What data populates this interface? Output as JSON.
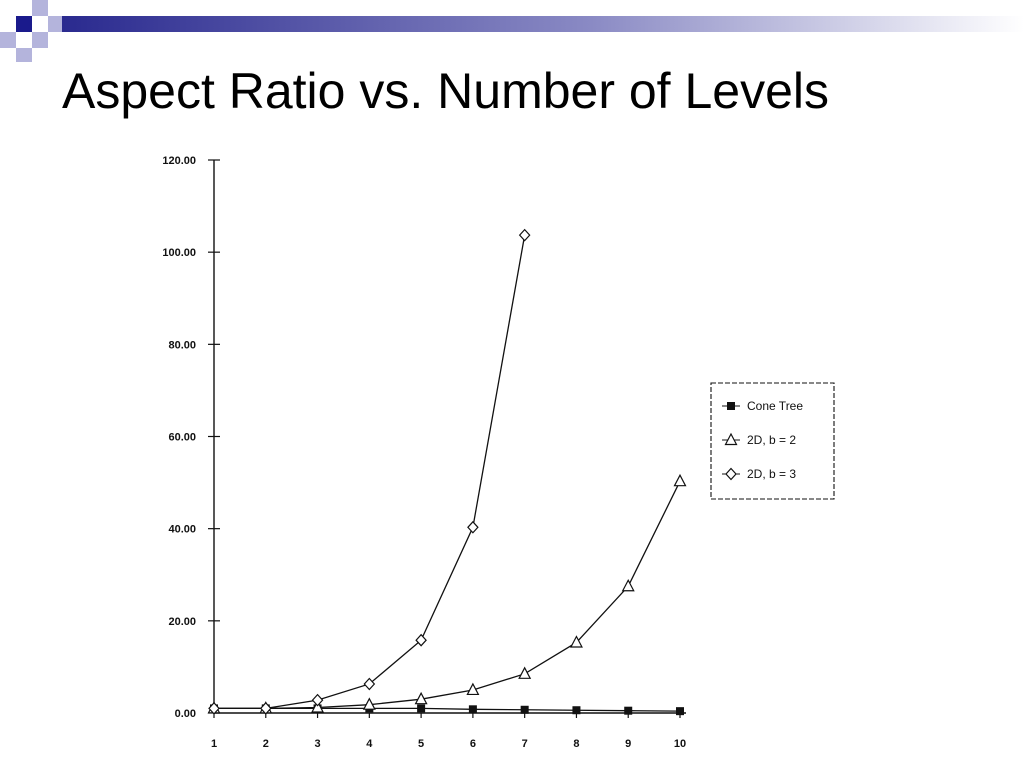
{
  "slide": {
    "title": "Aspect Ratio vs. Number of Levels"
  },
  "colors": {
    "accent_dark": "#1a1a8c",
    "accent_light": "#b4b4dc",
    "ink": "#111111"
  },
  "chart_data": {
    "type": "line",
    "title": "",
    "xlabel": "",
    "ylabel": "",
    "x": [
      1,
      2,
      3,
      4,
      5,
      6,
      7,
      8,
      9,
      10
    ],
    "x_tick_labels": [
      "1",
      "2",
      "3",
      "4",
      "5",
      "6",
      "7",
      "8",
      "9",
      "10"
    ],
    "y_tick_labels": [
      "0.00",
      "20.00",
      "40.00",
      "60.00",
      "80.00",
      "100.00",
      "120.00"
    ],
    "y_ticks": [
      0,
      20,
      40,
      60,
      80,
      100,
      120
    ],
    "xlim": [
      1,
      10
    ],
    "ylim": [
      0,
      120
    ],
    "grid": false,
    "legend_position": "right",
    "series": [
      {
        "name": "Cone Tree",
        "marker": "filled-square",
        "x": [
          1,
          2,
          3,
          4,
          5,
          6,
          7,
          8,
          9,
          10
        ],
        "values": [
          1.0,
          1.0,
          1.0,
          1.0,
          1.0,
          0.8,
          0.7,
          0.6,
          0.5,
          0.4
        ]
      },
      {
        "name": "2D, b = 2",
        "marker": "triangle",
        "x": [
          1,
          2,
          3,
          4,
          5,
          6,
          7,
          8,
          9,
          10
        ],
        "values": [
          1.0,
          1.0,
          1.2,
          1.8,
          3.0,
          5.0,
          8.5,
          15.3,
          27.5,
          50.3
        ]
      },
      {
        "name": "2D, b = 3",
        "marker": "diamond",
        "x": [
          1,
          2,
          3,
          4,
          5,
          6,
          7
        ],
        "values": [
          1.0,
          1.0,
          2.8,
          6.3,
          15.8,
          40.3,
          103.7
        ]
      }
    ]
  }
}
